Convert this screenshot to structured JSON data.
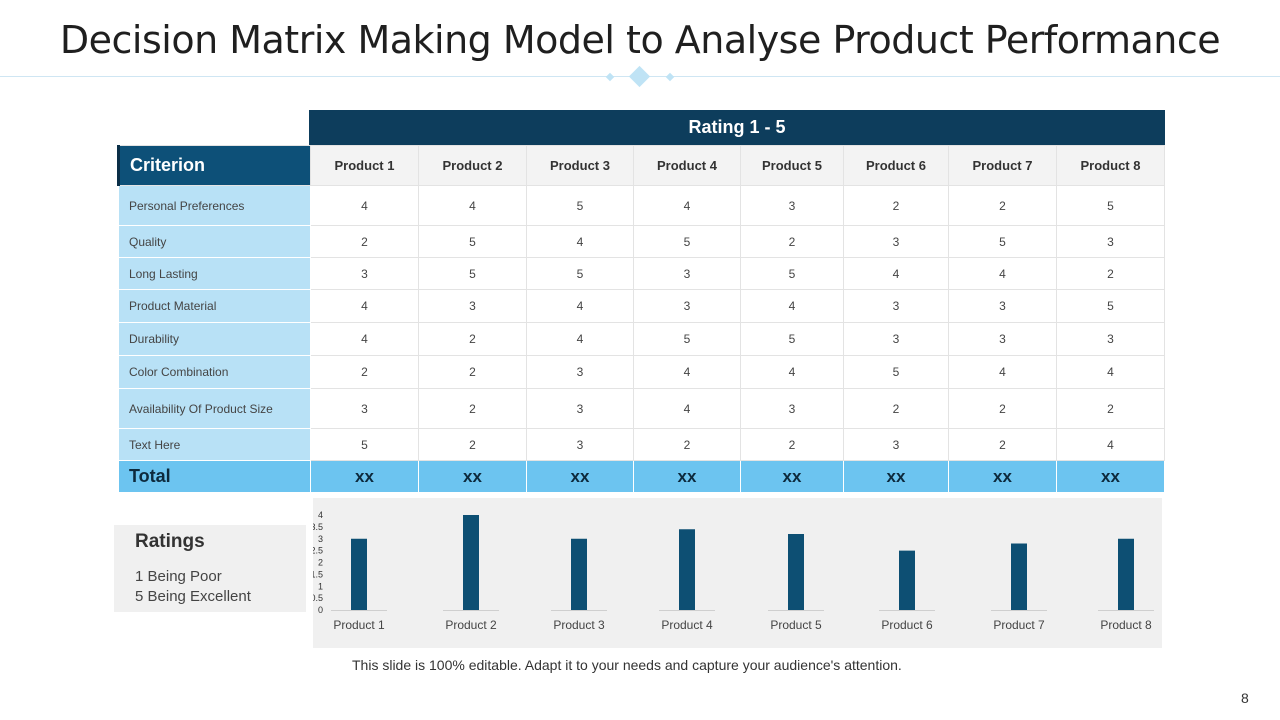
{
  "slide": {
    "title": "Decision Matrix Making Model to Analyse Product Performance",
    "rating_header": "Rating  1 - 5",
    "criterion_header": "Criterion",
    "footnote": "This slide is 100% editable. Adapt it to your needs and capture your audience's attention.",
    "page_number": "8"
  },
  "table": {
    "products": [
      "Product 1",
      "Product 2",
      "Product 3",
      "Product 4",
      "Product  5",
      "Product 6",
      "Product 7",
      "Product 8"
    ],
    "rows": [
      {
        "criterion": "Personal Preferences",
        "values": [
          "4",
          "4",
          "5",
          "4",
          "3",
          "2",
          "2",
          "5"
        ]
      },
      {
        "criterion": "Quality",
        "values": [
          "2",
          "5",
          "4",
          "5",
          "2",
          "3",
          "5",
          "3"
        ]
      },
      {
        "criterion": "Long Lasting",
        "values": [
          "3",
          "5",
          "5",
          "3",
          "5",
          "4",
          "4",
          "2"
        ]
      },
      {
        "criterion": "Product Material",
        "values": [
          "4",
          "3",
          "4",
          "3",
          "4",
          "3",
          "3",
          "5"
        ]
      },
      {
        "criterion": "Durability",
        "values": [
          "4",
          "2",
          "4",
          "5",
          "5",
          "3",
          "3",
          "3"
        ]
      },
      {
        "criterion": "Color Combination",
        "values": [
          "2",
          "2",
          "3",
          "4",
          "4",
          "5",
          "4",
          "4"
        ]
      },
      {
        "criterion": "Availability Of Product Size",
        "values": [
          "3",
          "2",
          "3",
          "4",
          "3",
          "2",
          "2",
          "2"
        ]
      },
      {
        "criterion": "Text Here",
        "values": [
          "5",
          "2",
          "3",
          "2",
          "2",
          "3",
          "2",
          "4"
        ]
      }
    ],
    "total": {
      "label": "Total",
      "values": [
        "xx",
        "xx",
        "xx",
        "xx",
        "xx",
        "xx",
        "xx",
        "xx"
      ]
    }
  },
  "ratings_legend": {
    "title": "Ratings",
    "lines": [
      "1 Being Poor",
      "5 Being Excellent"
    ]
  },
  "chart_data": {
    "type": "bar",
    "categories": [
      "Product 1",
      "Product 2",
      "Product 3",
      "Product 4",
      "Product 5",
      "Product 6",
      "Product 7",
      "Product 8"
    ],
    "values": [
      3.0,
      4.0,
      3.0,
      3.4,
      3.2,
      2.5,
      2.8,
      3.0
    ],
    "ylim": [
      0,
      4
    ],
    "yticks": [
      "0",
      "0.5",
      "1",
      "1.5",
      "2",
      "2.5",
      "3",
      "3.5",
      "4"
    ],
    "bar_color": "#0d4f73",
    "grid": false
  }
}
